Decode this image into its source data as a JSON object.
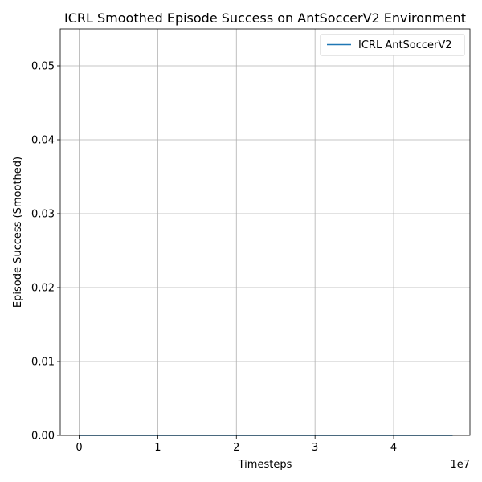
{
  "chart_data": {
    "type": "line",
    "title": "ICRL Smoothed Episode Success on AntSoccerV2 Environment",
    "xlabel": "Timesteps",
    "ylabel": "Episode Success (Smoothed)",
    "x_offset_label": "1e7",
    "xlim": [
      -2400000,
      49700000
    ],
    "ylim": [
      0,
      0.055
    ],
    "xticks": [
      0,
      10000000,
      20000000,
      30000000,
      40000000
    ],
    "xtick_labels": [
      "0",
      "1",
      "2",
      "3",
      "4"
    ],
    "yticks": [
      0,
      0.01,
      0.02,
      0.03,
      0.04,
      0.05
    ],
    "ytick_labels": [
      "0.00",
      "0.01",
      "0.02",
      "0.03",
      "0.04",
      "0.05"
    ],
    "grid": true,
    "legend_position": "top-right",
    "series": [
      {
        "name": "ICRL AntSoccerV2",
        "color": "#1f77b4",
        "x": [
          0,
          5000000,
          10000000,
          15000000,
          20000000,
          25000000,
          30000000,
          35000000,
          40000000,
          45000000,
          47500000
        ],
        "y": [
          0,
          0,
          0,
          0,
          0,
          0,
          0,
          0,
          0,
          0,
          0
        ]
      }
    ]
  }
}
